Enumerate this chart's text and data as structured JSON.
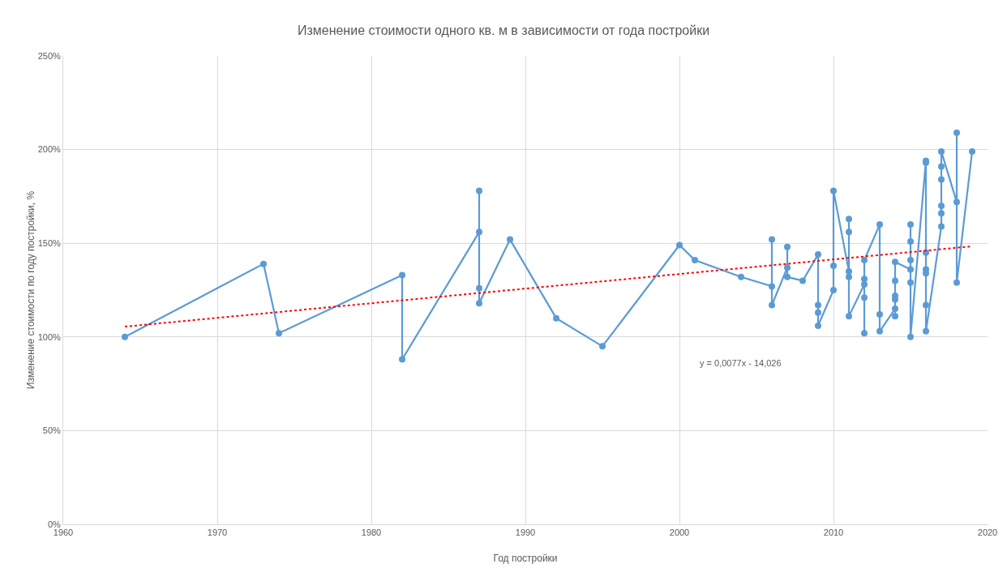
{
  "chart_data": {
    "type": "line",
    "title": "Изменение стоимости одного кв. м в зависимости от года постройки",
    "xlabel": "Год постройки",
    "ylabel": "Изменение стоимости по году постройки, %",
    "xlim": [
      1960,
      2020
    ],
    "xticks": [
      1960,
      1970,
      1980,
      1990,
      2000,
      2010,
      2020
    ],
    "ylim": [
      0,
      250
    ],
    "yticks": [
      {
        "value": 0,
        "label": "0%"
      },
      {
        "value": 50,
        "label": "50%"
      },
      {
        "value": 100,
        "label": "100%"
      },
      {
        "value": 150,
        "label": "150%"
      },
      {
        "value": 200,
        "label": "200%"
      },
      {
        "value": 250,
        "label": "250%"
      }
    ],
    "grid": true,
    "marker": "circle",
    "line_style": "solid",
    "series": [
      {
        "color": "#5b9bd5",
        "x": [
          1964,
          1973,
          1974,
          1982,
          1982,
          1987,
          1987,
          1987,
          1987,
          1989,
          1992,
          1995,
          2000,
          2001,
          2004,
          2006,
          2006,
          2006,
          2007,
          2007,
          2007,
          2008,
          2009,
          2009,
          2009,
          2009,
          2010,
          2010,
          2010,
          2011,
          2011,
          2011,
          2011,
          2011,
          2012,
          2012,
          2012,
          2012,
          2012,
          2013,
          2013,
          2013,
          2014,
          2014,
          2014,
          2014,
          2014,
          2014,
          2015,
          2015,
          2015,
          2015,
          2015,
          2015,
          2016,
          2016,
          2016,
          2016,
          2016,
          2016,
          2016,
          2017,
          2017,
          2017,
          2017,
          2017,
          2017,
          2018,
          2018,
          2018,
          2019
        ],
        "values": [
          100,
          139,
          102,
          133,
          88,
          156,
          178,
          126,
          118,
          152,
          110,
          95,
          149,
          141,
          132,
          127,
          152,
          117,
          137,
          148,
          132,
          130,
          144,
          117,
          113,
          106,
          125,
          138,
          178,
          135,
          163,
          156,
          132,
          111,
          128,
          102,
          121,
          131,
          141,
          160,
          112,
          103,
          115,
          111,
          120,
          122,
          130,
          140,
          136,
          160,
          151,
          141,
          129,
          100,
          194,
          193,
          145,
          136,
          134,
          117,
          103,
          159,
          166,
          170,
          184,
          191,
          199,
          172,
          209,
          129,
          199
        ]
      },
      {
        "type": "line",
        "color": "#ff0000",
        "marker": "none",
        "line_style": "dotted",
        "x": [
          1964,
          2019
        ],
        "values": [
          105.5,
          148.4
        ]
      }
    ],
    "annotations": [
      "y = 0,0077x - 14,026"
    ]
  }
}
